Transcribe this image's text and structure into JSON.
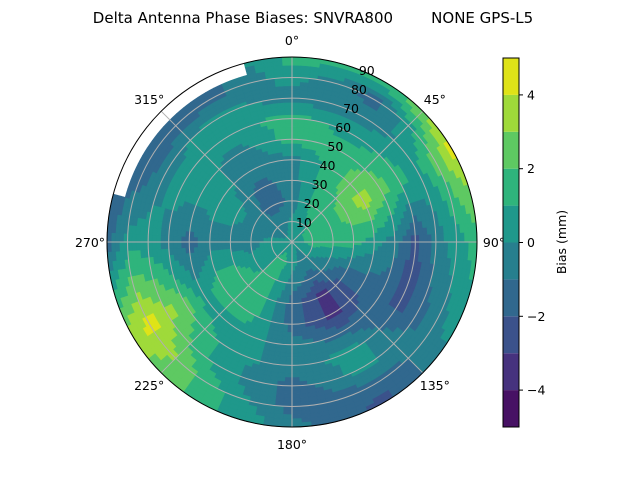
{
  "chart_data": {
    "type": "polar-contour",
    "title": "Delta Antenna Phase Biases: SNVRA800        NONE GPS-L5",
    "theta_direction": "clockwise",
    "theta_zero": "north",
    "theta_tick_labels": [
      "0°",
      "45°",
      "90°",
      "135°",
      "180°",
      "225°",
      "270°",
      "315°"
    ],
    "r_tick_labels": [
      "10",
      "20",
      "30",
      "40",
      "50",
      "60",
      "70",
      "80",
      "90"
    ],
    "r_range": [
      0,
      90
    ],
    "grid": true,
    "azimuth_deg": [
      0,
      30,
      60,
      90,
      120,
      150,
      180,
      210,
      240,
      270,
      300,
      330
    ],
    "zenith_deg": [
      0,
      10,
      20,
      30,
      40,
      50,
      60,
      70,
      80,
      90
    ],
    "values_mm": [
      [
        0.3,
        0.3,
        -0.8,
        -0.5,
        -0.5,
        1.5,
        1.5,
        -0.5,
        0.5,
        1.5
      ],
      [
        0.3,
        0.5,
        1.5,
        1.5,
        1.5,
        1.5,
        0.5,
        -0.5,
        -1.5,
        1.5
      ],
      [
        0.3,
        1.5,
        1.5,
        2.5,
        3.6,
        2.5,
        1.5,
        0.5,
        2.5,
        4.5
      ],
      [
        0.3,
        1.5,
        1.5,
        1.5,
        0.5,
        -0.5,
        -2.5,
        -0.5,
        0.5,
        1.5
      ],
      [
        0.3,
        0.5,
        -0.5,
        -1.5,
        -1.5,
        -1.5,
        -2.5,
        -1.5,
        -0.5,
        0.5
      ],
      [
        0.3,
        -0.5,
        -1.5,
        -3.5,
        -3.5,
        -1.5,
        0.5,
        0.5,
        -1.5,
        -2.5
      ],
      [
        0.3,
        0.5,
        -0.5,
        -1.5,
        -1.5,
        -0.5,
        -0.5,
        -1.5,
        -1.5,
        -0.5
      ],
      [
        0.3,
        1.5,
        1.5,
        1.5,
        1.5,
        0.5,
        0.5,
        0.5,
        1.5,
        1.5
      ],
      [
        0.3,
        0.5,
        0.5,
        1.5,
        1.5,
        0.5,
        2.5,
        3.5,
        4.5,
        3.5
      ],
      [
        0.3,
        0.5,
        -0.5,
        -0.5,
        -0.5,
        -1.5,
        -0.5,
        0.5,
        0.5,
        -1.5
      ],
      [
        0.3,
        -0.5,
        -0.5,
        0.5,
        0.5,
        0.5,
        0.5,
        -0.5,
        -2.0,
        null
      ],
      [
        0.3,
        -0.5,
        -1.5,
        -1.5,
        -0.5,
        -0.5,
        0.5,
        0.5,
        -1.5,
        null
      ]
    ],
    "levels": [
      -5,
      -4,
      -3,
      -2,
      -1,
      0,
      1,
      2,
      3,
      4,
      5
    ],
    "colors": [
      "#471164",
      "#46327e",
      "#3b528b",
      "#31688e",
      "#277f8e",
      "#1f988b",
      "#2fb47c",
      "#5ec962",
      "#9fda3a",
      "#dfe318"
    ],
    "colorbar": {
      "label": "Bias (mm)",
      "ticks": [
        -4,
        -2,
        0,
        2,
        4
      ],
      "tick_labels": [
        "−4",
        "−2",
        "0",
        "2",
        "4"
      ],
      "range": [
        -5,
        5
      ]
    }
  }
}
